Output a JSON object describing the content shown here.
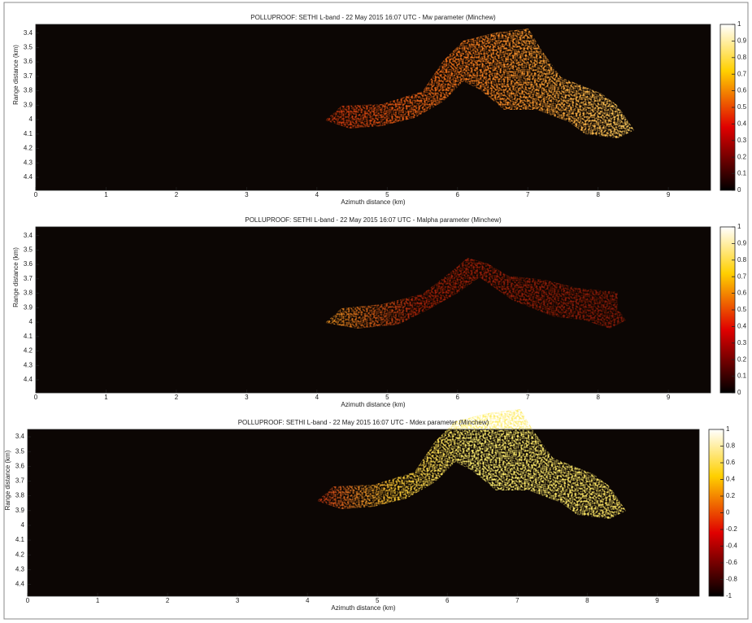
{
  "chart_data": [
    {
      "type": "heatmap",
      "title": "POLLUPROOF: SETHI L-band - 22 May 2015 16:07 UTC - Mw parameter (Minchew)",
      "xlabel": "Azimuth distance (km)",
      "ylabel": "Range distance (km)",
      "xlim": [
        0,
        9.6
      ],
      "ylim": [
        3.34,
        4.49
      ],
      "xticks": [
        0,
        1,
        2,
        3,
        4,
        5,
        6,
        7,
        8,
        9
      ],
      "yticks": [
        3.4,
        3.5,
        3.6,
        3.7,
        3.8,
        3.9,
        4,
        4.1,
        4.2,
        4.3,
        4.4
      ],
      "colormap": "hot",
      "clim": [
        0,
        1
      ],
      "cticks": [
        0,
        0.1,
        0.2,
        0.3,
        0.4,
        0.5,
        0.6,
        0.7,
        0.8,
        0.9,
        1
      ]
    },
    {
      "type": "heatmap",
      "title": "POLLUPROOF: SETHI L-band - 22 May 2015 16:07 UTC - Malpha parameter (Minchew)",
      "xlabel": "Azimuth distance (km)",
      "ylabel": "Range distance (km)",
      "xlim": [
        0,
        9.6
      ],
      "ylim": [
        3.34,
        4.49
      ],
      "xticks": [
        0,
        1,
        2,
        3,
        4,
        5,
        6,
        7,
        8,
        9
      ],
      "yticks": [
        3.4,
        3.5,
        3.6,
        3.7,
        3.8,
        3.9,
        4,
        4.1,
        4.2,
        4.3,
        4.4
      ],
      "colormap": "hot",
      "clim": [
        0,
        1
      ],
      "cticks": [
        0,
        0.1,
        0.2,
        0.3,
        0.4,
        0.5,
        0.6,
        0.7,
        0.8,
        0.9,
        1
      ]
    },
    {
      "type": "heatmap",
      "title": "POLLUPROOF: SETHI L-band - 22 May 2015 16:07 UTC - Mdex parameter (Minchew)",
      "xlabel": "Azimuth distance (km)",
      "ylabel": "Range distance (km)",
      "xlim": [
        0,
        9.6
      ],
      "ylim": [
        3.35,
        4.48
      ],
      "xticks": [
        0,
        1,
        2,
        3,
        4,
        5,
        6,
        7,
        8,
        9
      ],
      "yticks": [
        3.4,
        3.5,
        3.6,
        3.7,
        3.8,
        3.9,
        4,
        4.1,
        4.2,
        4.3,
        4.4
      ],
      "colormap": "hot",
      "clim": [
        -1,
        1
      ],
      "cticks": [
        -1,
        -0.8,
        -0.6,
        -0.4,
        -0.2,
        0,
        0.2,
        0.4,
        0.6,
        0.8,
        1
      ]
    }
  ]
}
